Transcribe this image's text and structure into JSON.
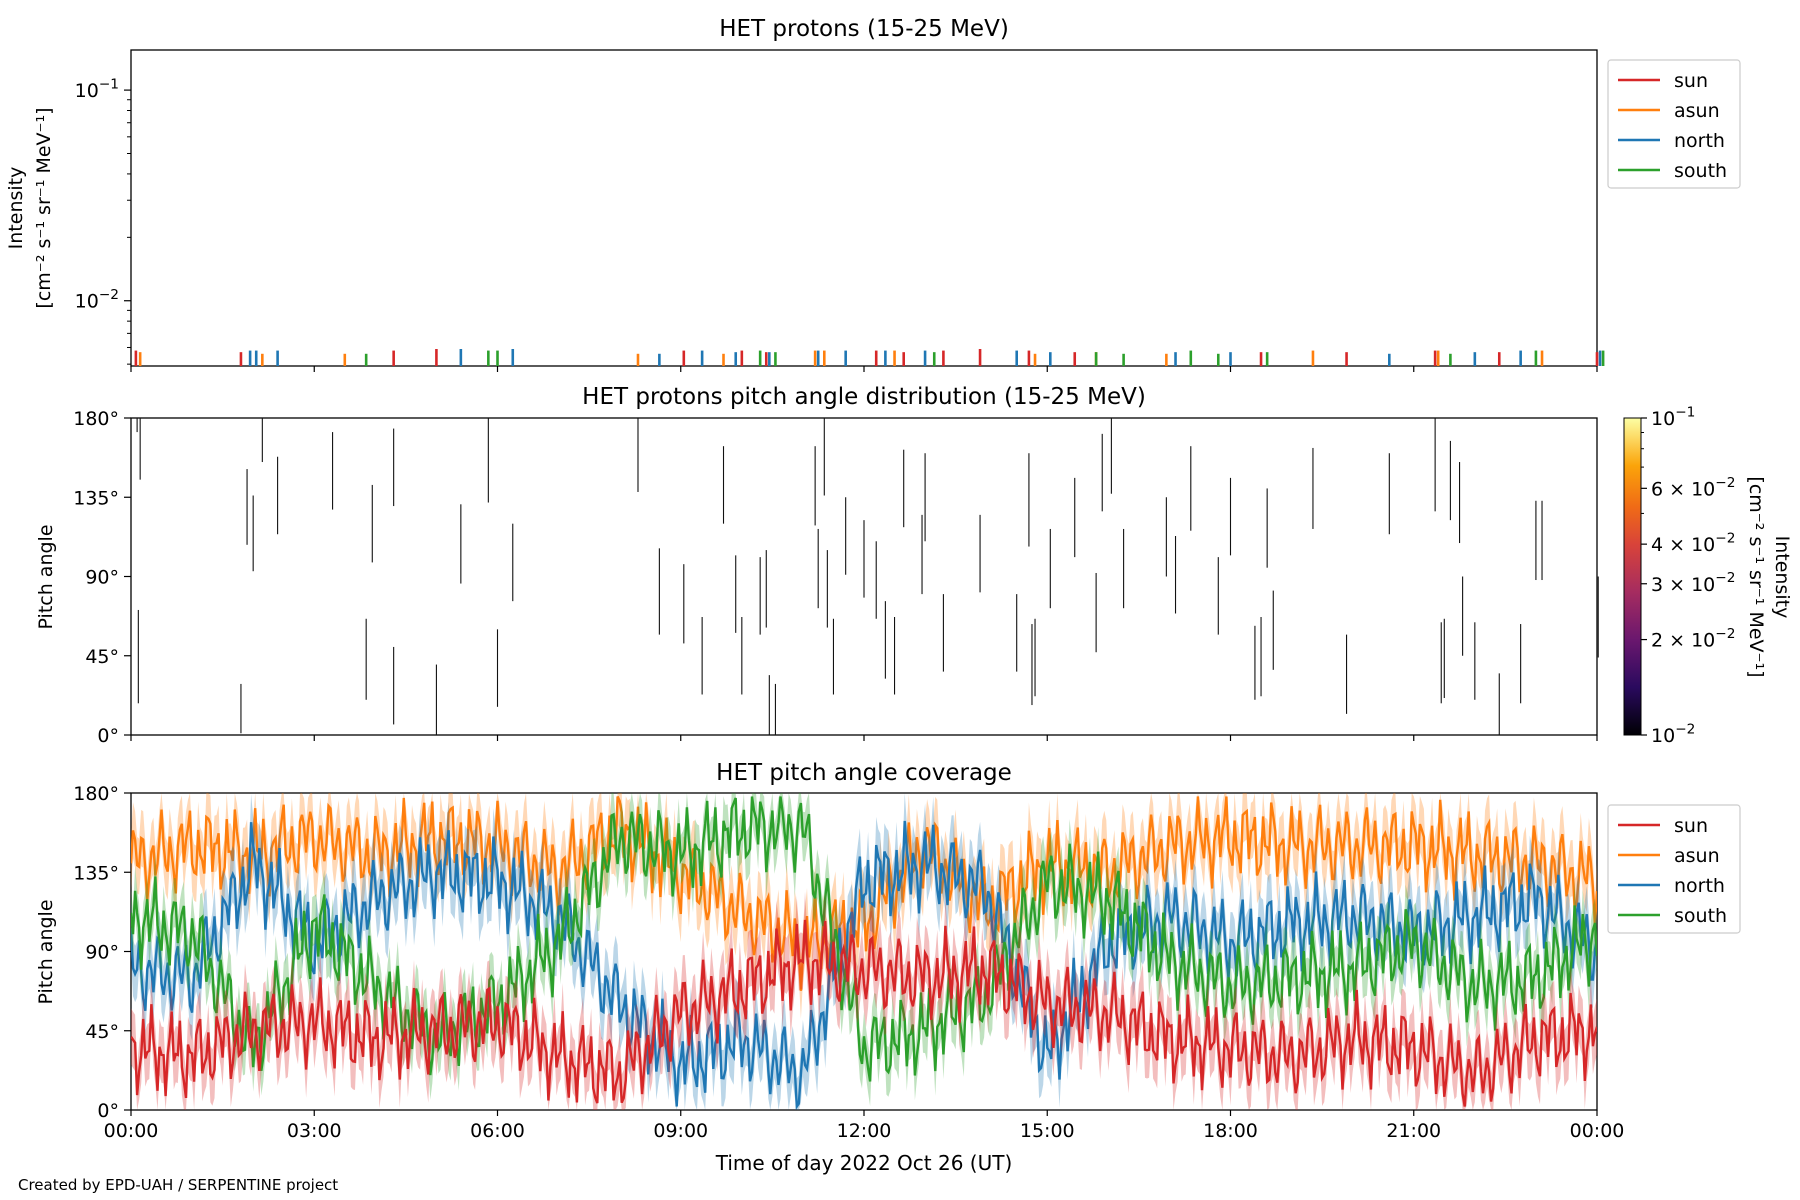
{
  "footer": "Created by EPD-UAH / SERPENTINE project",
  "colors": {
    "sun": "#d62728",
    "asun": "#ff7f0e",
    "north": "#1f77b4",
    "south": "#2ca02c"
  },
  "chart_data": [
    {
      "type": "line",
      "title": "HET protons (15-25 MeV)",
      "ylabel_line1": "Intensity",
      "ylabel_line2": "[cm⁻² s⁻¹ sr⁻¹ MeV⁻¹]",
      "y_scale": "log",
      "ylim": [
        0.0049,
        0.155
      ],
      "yticks": [
        {
          "value": 0.01,
          "base": "10",
          "exp": "−2"
        },
        {
          "value": 0.1,
          "base": "10",
          "exp": "−1"
        }
      ],
      "x_range_hours": [
        0,
        24
      ],
      "grid": false,
      "legend": {
        "position": "right-outside-top",
        "entries": [
          "sun",
          "asun",
          "north",
          "south"
        ]
      },
      "series": [
        {
          "name": "sun",
          "x_hours": [
            0.08,
            1.8,
            4.3,
            5.0,
            9.05,
            10.0,
            10.4,
            12.2,
            12.65,
            13.3,
            13.9,
            14.7,
            15.45,
            18.5,
            19.9,
            21.35,
            22.4,
            24.0
          ],
          "values": [
            0.0058,
            0.0057,
            0.0058,
            0.0059,
            0.0058,
            0.0058,
            0.0057,
            0.0058,
            0.0057,
            0.0058,
            0.0059,
            0.0058,
            0.0057,
            0.0057,
            0.0057,
            0.0058,
            0.0057,
            0.0057
          ]
        },
        {
          "name": "asun",
          "x_hours": [
            0.15,
            2.15,
            3.5,
            8.3,
            9.7,
            11.2,
            11.35,
            12.5,
            14.8,
            15.8,
            16.95,
            19.35,
            21.4,
            23.1
          ],
          "values": [
            0.0057,
            0.0056,
            0.0056,
            0.0056,
            0.0056,
            0.0058,
            0.0058,
            0.0058,
            0.0056,
            0.0057,
            0.0056,
            0.0058,
            0.0058,
            0.0058
          ]
        },
        {
          "name": "north",
          "x_hours": [
            1.95,
            2.05,
            2.4,
            5.4,
            6.25,
            8.65,
            9.35,
            9.9,
            10.45,
            11.25,
            11.7,
            12.35,
            13.0,
            14.5,
            15.05,
            17.1,
            18.0,
            20.6,
            22.0,
            22.75,
            24.05
          ],
          "values": [
            0.0058,
            0.0058,
            0.0058,
            0.0059,
            0.0059,
            0.0056,
            0.0058,
            0.0057,
            0.0057,
            0.0058,
            0.0058,
            0.0058,
            0.0058,
            0.0058,
            0.0057,
            0.0057,
            0.0057,
            0.0056,
            0.0057,
            0.0058,
            0.0058
          ]
        },
        {
          "name": "south",
          "x_hours": [
            3.85,
            5.85,
            6.0,
            10.3,
            10.55,
            13.15,
            15.8,
            16.25,
            17.35,
            17.8,
            18.6,
            21.6,
            23.0,
            24.1
          ],
          "values": [
            0.0056,
            0.0058,
            0.0058,
            0.0058,
            0.0057,
            0.0057,
            0.0057,
            0.0056,
            0.0058,
            0.0056,
            0.0057,
            0.0056,
            0.0058,
            0.0058
          ]
        }
      ]
    },
    {
      "type": "heatmap",
      "title": "HET protons pitch angle distribution (15-25 MeV)",
      "ylabel": "Pitch angle",
      "ylim": [
        0,
        180
      ],
      "yticks": [
        "0°",
        "45°",
        "90°",
        "135°",
        "180°"
      ],
      "x_range_hours": [
        0,
        24
      ],
      "colorbar": {
        "label": "Intensity",
        "label2": "[cm⁻² s⁻¹ sr⁻¹ MeV⁻¹]",
        "scale": "log",
        "range": [
          0.01,
          0.1
        ],
        "colormap": "inferno",
        "ticks": [
          {
            "value": 0.01,
            "text": "10",
            "exp": "−2"
          },
          {
            "value": 0.02,
            "text": "2 × 10",
            "exp": "−2"
          },
          {
            "value": 0.03,
            "text": "3 × 10",
            "exp": "−2"
          },
          {
            "value": 0.04,
            "text": "4 × 10",
            "exp": "−2"
          },
          {
            "value": 0.06,
            "text": "6 × 10",
            "exp": "−2"
          },
          {
            "value": 0.1,
            "text": "10",
            "exp": "−1"
          }
        ]
      },
      "segments": [
        {
          "x": 0.1,
          "y0": 172,
          "y1": 180
        },
        {
          "x": 0.15,
          "y0": 145,
          "y1": 180
        },
        {
          "x": 0.12,
          "y0": 18,
          "y1": 71
        },
        {
          "x": 1.8,
          "y0": 1,
          "y1": 29
        },
        {
          "x": 1.9,
          "y0": 108,
          "y1": 151
        },
        {
          "x": 2.0,
          "y0": 93,
          "y1": 136
        },
        {
          "x": 2.15,
          "y0": 155,
          "y1": 180
        },
        {
          "x": 2.4,
          "y0": 114,
          "y1": 158
        },
        {
          "x": 3.3,
          "y0": 128,
          "y1": 172
        },
        {
          "x": 3.85,
          "y0": 20,
          "y1": 66
        },
        {
          "x": 3.95,
          "y0": 98,
          "y1": 142
        },
        {
          "x": 4.3,
          "y0": 6,
          "y1": 50
        },
        {
          "x": 4.3,
          "y0": 130,
          "y1": 174
        },
        {
          "x": 5.0,
          "y0": 0,
          "y1": 40
        },
        {
          "x": 5.4,
          "y0": 86,
          "y1": 131
        },
        {
          "x": 5.85,
          "y0": 132,
          "y1": 180
        },
        {
          "x": 6.0,
          "y0": 16,
          "y1": 60
        },
        {
          "x": 6.25,
          "y0": 76,
          "y1": 120
        },
        {
          "x": 8.3,
          "y0": 138,
          "y1": 180
        },
        {
          "x": 8.65,
          "y0": 57,
          "y1": 106
        },
        {
          "x": 9.05,
          "y0": 52,
          "y1": 97
        },
        {
          "x": 9.35,
          "y0": 23,
          "y1": 67
        },
        {
          "x": 9.7,
          "y0": 120,
          "y1": 164
        },
        {
          "x": 9.9,
          "y0": 58,
          "y1": 102
        },
        {
          "x": 10.0,
          "y0": 23,
          "y1": 67
        },
        {
          "x": 10.3,
          "y0": 57,
          "y1": 101
        },
        {
          "x": 10.4,
          "y0": 61,
          "y1": 105
        },
        {
          "x": 10.45,
          "y0": 0,
          "y1": 34
        },
        {
          "x": 10.55,
          "y0": 0,
          "y1": 29
        },
        {
          "x": 11.2,
          "y0": 119,
          "y1": 164
        },
        {
          "x": 11.25,
          "y0": 72,
          "y1": 117
        },
        {
          "x": 11.35,
          "y0": 136,
          "y1": 180
        },
        {
          "x": 11.4,
          "y0": 61,
          "y1": 105
        },
        {
          "x": 11.5,
          "y0": 23,
          "y1": 66
        },
        {
          "x": 11.7,
          "y0": 91,
          "y1": 135
        },
        {
          "x": 12.0,
          "y0": 78,
          "y1": 122
        },
        {
          "x": 12.2,
          "y0": 66,
          "y1": 110
        },
        {
          "x": 12.35,
          "y0": 32,
          "y1": 76
        },
        {
          "x": 12.5,
          "y0": 23,
          "y1": 67
        },
        {
          "x": 12.65,
          "y0": 118,
          "y1": 162
        },
        {
          "x": 12.95,
          "y0": 80,
          "y1": 125
        },
        {
          "x": 13.0,
          "y0": 110,
          "y1": 160
        },
        {
          "x": 13.3,
          "y0": 36,
          "y1": 80
        },
        {
          "x": 13.9,
          "y0": 81,
          "y1": 125
        },
        {
          "x": 14.5,
          "y0": 36,
          "y1": 80
        },
        {
          "x": 14.7,
          "y0": 107,
          "y1": 160
        },
        {
          "x": 14.75,
          "y0": 17,
          "y1": 63
        },
        {
          "x": 14.8,
          "y0": 22,
          "y1": 66
        },
        {
          "x": 15.05,
          "y0": 72,
          "y1": 117
        },
        {
          "x": 15.45,
          "y0": 101,
          "y1": 146
        },
        {
          "x": 15.8,
          "y0": 47,
          "y1": 92
        },
        {
          "x": 15.9,
          "y0": 127,
          "y1": 171
        },
        {
          "x": 16.05,
          "y0": 137,
          "y1": 180
        },
        {
          "x": 16.25,
          "y0": 72,
          "y1": 117
        },
        {
          "x": 16.95,
          "y0": 90,
          "y1": 135
        },
        {
          "x": 17.1,
          "y0": 69,
          "y1": 113
        },
        {
          "x": 17.35,
          "y0": 116,
          "y1": 164
        },
        {
          "x": 17.8,
          "y0": 57,
          "y1": 101
        },
        {
          "x": 18.0,
          "y0": 102,
          "y1": 146
        },
        {
          "x": 18.4,
          "y0": 20,
          "y1": 62
        },
        {
          "x": 18.5,
          "y0": 22,
          "y1": 67
        },
        {
          "x": 18.6,
          "y0": 95,
          "y1": 140
        },
        {
          "x": 18.7,
          "y0": 37,
          "y1": 82
        },
        {
          "x": 19.35,
          "y0": 117,
          "y1": 163
        },
        {
          "x": 19.9,
          "y0": 12,
          "y1": 57
        },
        {
          "x": 20.6,
          "y0": 114,
          "y1": 160
        },
        {
          "x": 21.35,
          "y0": 127,
          "y1": 180
        },
        {
          "x": 21.45,
          "y0": 18,
          "y1": 64
        },
        {
          "x": 21.5,
          "y0": 21,
          "y1": 66
        },
        {
          "x": 21.6,
          "y0": 122,
          "y1": 167
        },
        {
          "x": 21.75,
          "y0": 109,
          "y1": 155
        },
        {
          "x": 21.8,
          "y0": 45,
          "y1": 90
        },
        {
          "x": 22.0,
          "y0": 20,
          "y1": 64
        },
        {
          "x": 22.4,
          "y0": 0,
          "y1": 35
        },
        {
          "x": 22.75,
          "y0": 18,
          "y1": 63
        },
        {
          "x": 23.0,
          "y0": 88,
          "y1": 133
        },
        {
          "x": 23.1,
          "y0": 88,
          "y1": 133
        },
        {
          "x": 24.0,
          "y0": 2,
          "y1": 88
        },
        {
          "x": 24.02,
          "y0": 44,
          "y1": 90
        }
      ]
    },
    {
      "type": "line",
      "title": "HET pitch angle coverage",
      "ylabel": "Pitch angle",
      "xlabel": "Time of day 2022 Oct 26 (UT)",
      "ylim": [
        0,
        180
      ],
      "yticks": [
        "0°",
        "45°",
        "90°",
        "135°",
        "180°"
      ],
      "xticks": [
        "00:00",
        "03:00",
        "06:00",
        "09:00",
        "12:00",
        "15:00",
        "18:00",
        "21:00",
        "00:00"
      ],
      "x_range_hours": [
        0,
        24
      ],
      "legend": {
        "position": "right-outside-top",
        "entries": [
          "sun",
          "asun",
          "north",
          "south"
        ]
      },
      "series": [
        {
          "name": "asun",
          "x_hours": [
            0,
            1,
            2,
            3,
            4,
            5,
            6,
            7,
            8,
            9,
            10,
            11,
            12,
            13,
            14,
            15,
            16,
            17,
            18,
            19,
            20,
            21,
            22,
            23,
            24
          ],
          "values": [
            140,
            150,
            145,
            155,
            145,
            155,
            150,
            135,
            160,
            135,
            112,
            95,
            105,
            150,
            115,
            140,
            135,
            150,
            155,
            150,
            150,
            150,
            145,
            140,
            130
          ],
          "band": 16
        },
        {
          "name": "north",
          "x_hours": [
            0,
            1,
            2,
            3,
            4,
            5,
            6,
            7,
            8,
            9,
            10,
            11,
            12,
            13,
            14,
            15,
            16,
            17,
            18,
            19,
            20,
            21,
            22,
            23,
            24
          ],
          "values": [
            80,
            75,
            140,
            95,
            120,
            135,
            130,
            110,
            60,
            25,
            40,
            20,
            130,
            140,
            125,
            30,
            95,
            110,
            95,
            105,
            110,
            100,
            110,
            120,
            90
          ],
          "band": 16
        },
        {
          "name": "south",
          "x_hours": [
            0,
            1,
            2,
            3,
            4,
            5,
            6,
            7,
            8,
            9,
            10,
            11,
            12,
            13,
            14,
            15,
            16,
            17,
            18,
            19,
            20,
            21,
            22,
            23,
            24
          ],
          "values": [
            110,
            100,
            35,
            105,
            70,
            40,
            60,
            95,
            155,
            145,
            160,
            160,
            35,
            45,
            65,
            130,
            120,
            85,
            70,
            75,
            80,
            95,
            70,
            75,
            100
          ],
          "band": 14
        },
        {
          "name": "sun",
          "x_hours": [
            0,
            1,
            2,
            3,
            4,
            5,
            6,
            7,
            8,
            9,
            10,
            11,
            12,
            13,
            14,
            15,
            16,
            17,
            18,
            19,
            20,
            21,
            22,
            23,
            24
          ],
          "values": [
            35,
            30,
            45,
            50,
            40,
            45,
            50,
            30,
            20,
            55,
            70,
            85,
            80,
            75,
            80,
            60,
            55,
            40,
            35,
            30,
            40,
            35,
            20,
            40,
            45
          ],
          "band": 16
        }
      ]
    }
  ]
}
